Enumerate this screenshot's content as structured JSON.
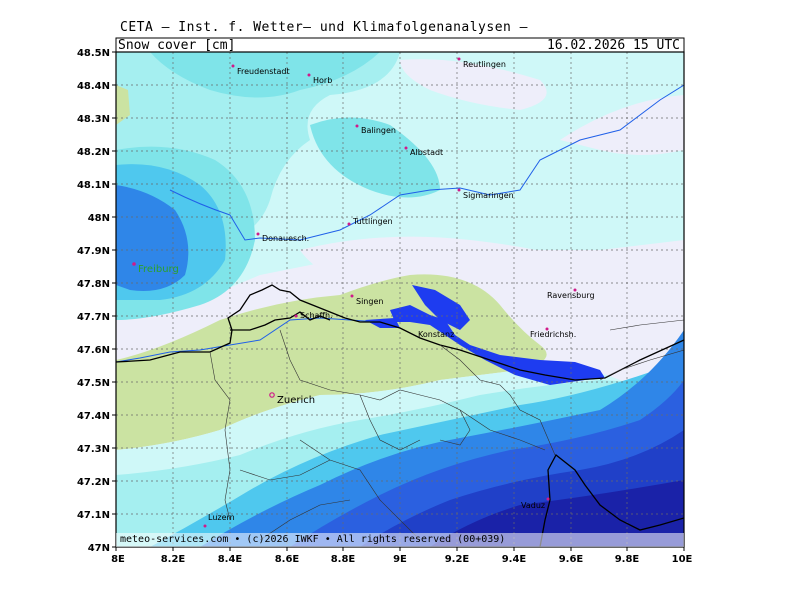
{
  "header": {
    "title": "CETA – Inst. f. Wetter– und Klimafolgenanalysen –",
    "parameter": "Snow_cover [cm]",
    "datetime": "16.02.2026 15 UTC"
  },
  "axes": {
    "y_labels": [
      "48.5N",
      "48.4N",
      "48.3N",
      "48.2N",
      "48.1N",
      "48N",
      "47.9N",
      "47.8N",
      "47.7N",
      "47.6N",
      "47.5N",
      "47.4N",
      "47.3N",
      "47.2N",
      "47.1N",
      "47N"
    ],
    "x_labels": [
      "8E",
      "8.2E",
      "8.4E",
      "8.6E",
      "8.8E",
      "9E",
      "9.2E",
      "9.4E",
      "9.6E",
      "9.8E",
      "10E"
    ]
  },
  "cities": [
    {
      "name": "Freudenstadt"
    },
    {
      "name": "Horb"
    },
    {
      "name": "Reutlingen"
    },
    {
      "name": "Balingen"
    },
    {
      "name": "Albstadt"
    },
    {
      "name": "Sigmaringen"
    },
    {
      "name": "Tuttlingen"
    },
    {
      "name": "Donauesch."
    },
    {
      "name": "Freiburg"
    },
    {
      "name": "Singen"
    },
    {
      "name": "Schaffh."
    },
    {
      "name": "Konstanz"
    },
    {
      "name": "Ravensburg"
    },
    {
      "name": "Friedrichsh."
    },
    {
      "name": "Zuerich"
    },
    {
      "name": "Vaduz"
    },
    {
      "name": "Luzern"
    }
  ],
  "footer": {
    "credit": "meteo-services.com • (c)2026 IWKF • All rights reserved (00+039)"
  },
  "colors": {
    "lightest": "#eeeefa",
    "cyan_light": "#cff8f8",
    "cyan": "#a5eff0",
    "turquoise": "#7fe4e9",
    "sky": "#4fc8ee",
    "blue": "#2f86e8",
    "blue_mid": "#2b60e0",
    "blue_dark": "#2040c8",
    "navy": "#1a22a8",
    "green": "#cbe3a2",
    "lake": "#1e3cf0",
    "city_marker": "#d01a8a",
    "freiburg_label": "#2ca02c"
  }
}
